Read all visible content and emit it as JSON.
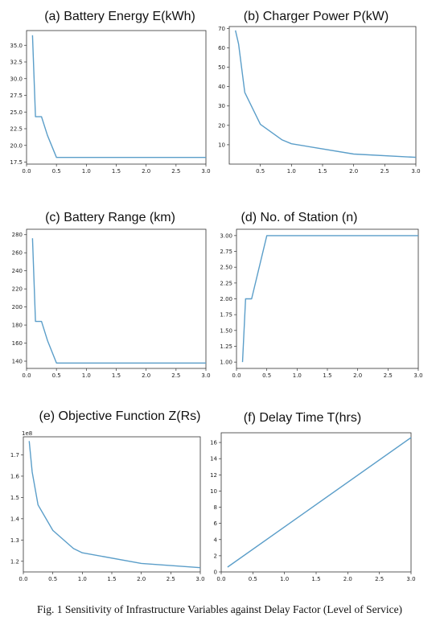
{
  "caption": "Fig. 1 Sensitivity of Infrastructure Variables against Delay Factor (Level of Service)",
  "chart_data": [
    {
      "type": "line",
      "title": "(a) Battery Energy E(kWh)",
      "x": [
        0.1,
        0.15,
        0.25,
        0.35,
        0.5,
        3.0
      ],
      "y": [
        36.5,
        24.3,
        24.3,
        21.5,
        18.2,
        18.2
      ],
      "xlim": [
        0,
        3.0
      ],
      "ylim": [
        17.2,
        37.2
      ],
      "xticks": [
        "0.0",
        "0.5",
        "1.0",
        "1.5",
        "2.0",
        "2.5",
        "3.0"
      ],
      "yticks": [
        "17.5",
        "20.0",
        "22.5",
        "25.0",
        "27.5",
        "30.0",
        "32.5",
        "35.0"
      ],
      "color": "#5b9ec9"
    },
    {
      "type": "line",
      "title": "(b) Charger Power P(kW)",
      "x": [
        0.1,
        0.15,
        0.25,
        0.5,
        0.85,
        1.0,
        2.0,
        3.0
      ],
      "y": [
        69,
        62,
        37,
        20.5,
        12.5,
        10.5,
        5.2,
        3.5
      ],
      "xlim": [
        0,
        3.0
      ],
      "ylim": [
        0,
        71
      ],
      "xticks": [
        "0.5",
        "1.0",
        "1.5",
        "2.0",
        "2.5",
        "3.0"
      ],
      "yticks": [
        "10",
        "20",
        "30",
        "40",
        "50",
        "60",
        "70"
      ],
      "color": "#5b9ec9"
    },
    {
      "type": "line",
      "title": "(c) Battery Range (km)",
      "x": [
        0.1,
        0.15,
        0.25,
        0.35,
        0.5,
        3.0
      ],
      "y": [
        276,
        184,
        184,
        163,
        138,
        138
      ],
      "xlim": [
        0,
        3.0
      ],
      "ylim": [
        132,
        286
      ],
      "xticks": [
        "0.0",
        "0.5",
        "1.0",
        "1.5",
        "2.0",
        "2.5",
        "3.0"
      ],
      "yticks": [
        "140",
        "160",
        "180",
        "200",
        "220",
        "240",
        "260",
        "280"
      ],
      "color": "#5b9ec9"
    },
    {
      "type": "line",
      "title": "(d) No. of Station (n)",
      "x": [
        0.1,
        0.15,
        0.25,
        0.5,
        3.0
      ],
      "y": [
        1.0,
        2.0,
        2.0,
        3.0,
        3.0
      ],
      "xlim": [
        0,
        3.0
      ],
      "ylim": [
        0.9,
        3.1
      ],
      "xticks": [
        "0.0",
        "0.5",
        "1.0",
        "1.5",
        "2.0",
        "2.5",
        "3.0"
      ],
      "yticks": [
        "1.00",
        "1.25",
        "1.50",
        "1.75",
        "2.00",
        "2.25",
        "2.50",
        "2.75",
        "3.00"
      ],
      "color": "#5b9ec9"
    },
    {
      "type": "line",
      "title": "(e) Objective Function Z(Rs)",
      "offset_label": "1e8",
      "x": [
        0.1,
        0.15,
        0.25,
        0.5,
        0.85,
        1.0,
        2.0,
        3.0
      ],
      "y": [
        1.765,
        1.62,
        1.465,
        1.345,
        1.26,
        1.24,
        1.19,
        1.17
      ],
      "xlim": [
        0,
        3.0
      ],
      "ylim": [
        1.15,
        1.785
      ],
      "xticks": [
        "0.0",
        "0.5",
        "1.0",
        "1.5",
        "2.0",
        "2.5",
        "3.0"
      ],
      "yticks": [
        "1.2",
        "1.3",
        "1.4",
        "1.5",
        "1.6",
        "1.7"
      ],
      "color": "#5b9ec9"
    },
    {
      "type": "line",
      "title": "(f) Delay Time T(hrs)",
      "x": [
        0.1,
        3.0
      ],
      "y": [
        0.6,
        16.6
      ],
      "xlim": [
        0,
        3.0
      ],
      "ylim": [
        0,
        17.2
      ],
      "xticks": [
        "0.0",
        "0.5",
        "1.0",
        "1.5",
        "2.0",
        "2.5",
        "3.0"
      ],
      "yticks": [
        "0",
        "2",
        "4",
        "6",
        "8",
        "10",
        "12",
        "14",
        "16"
      ],
      "color": "#5b9ec9"
    }
  ]
}
